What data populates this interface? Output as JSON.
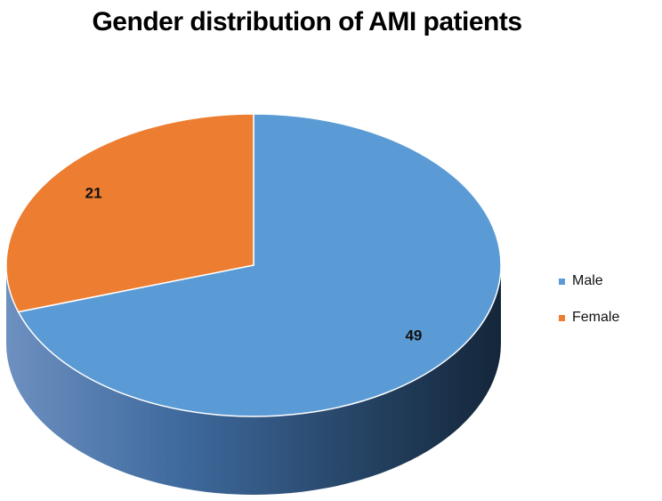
{
  "chart_data": {
    "type": "pie",
    "title": "Gender distribution of AMI patients",
    "slices": [
      {
        "label": "Male",
        "value": 49,
        "color": "#5b9bd5"
      },
      {
        "label": "Female",
        "value": 21,
        "color": "#ed7d31"
      }
    ],
    "show_values": true,
    "legend_position": "right",
    "style": "3d"
  }
}
